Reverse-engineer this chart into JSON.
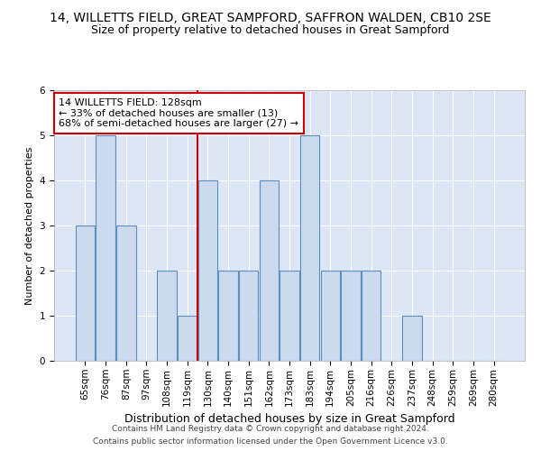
{
  "title": "14, WILLETTS FIELD, GREAT SAMPFORD, SAFFRON WALDEN, CB10 2SE",
  "subtitle": "Size of property relative to detached houses in Great Sampford",
  "xlabel": "Distribution of detached houses by size in Great Sampford",
  "ylabel": "Number of detached properties",
  "categories": [
    "65sqm",
    "76sqm",
    "87sqm",
    "97sqm",
    "108sqm",
    "119sqm",
    "130sqm",
    "140sqm",
    "151sqm",
    "162sqm",
    "173sqm",
    "183sqm",
    "194sqm",
    "205sqm",
    "216sqm",
    "226sqm",
    "237sqm",
    "248sqm",
    "259sqm",
    "269sqm",
    "280sqm"
  ],
  "values": [
    3,
    5,
    3,
    0,
    2,
    1,
    4,
    2,
    2,
    4,
    2,
    5,
    2,
    2,
    2,
    0,
    1,
    0,
    0,
    0,
    0
  ],
  "bar_color": "#ccd9ee",
  "bar_edge_color": "#5a8fc0",
  "vline_x_index": 6,
  "vline_color": "#cc0000",
  "annotation_text": "14 WILLETTS FIELD: 128sqm\n← 33% of detached houses are smaller (13)\n68% of semi-detached houses are larger (27) →",
  "annotation_box_color": "white",
  "annotation_box_edge": "#cc0000",
  "ylim": [
    0,
    6
  ],
  "yticks": [
    0,
    1,
    2,
    3,
    4,
    5,
    6
  ],
  "footer1": "Contains HM Land Registry data © Crown copyright and database right 2024.",
  "footer2": "Contains public sector information licensed under the Open Government Licence v3.0.",
  "title_fontsize": 10,
  "subtitle_fontsize": 9,
  "xlabel_fontsize": 9,
  "ylabel_fontsize": 8,
  "tick_fontsize": 7.5,
  "annotation_fontsize": 8,
  "footer_fontsize": 6.5,
  "background_color": "#dce6f5"
}
